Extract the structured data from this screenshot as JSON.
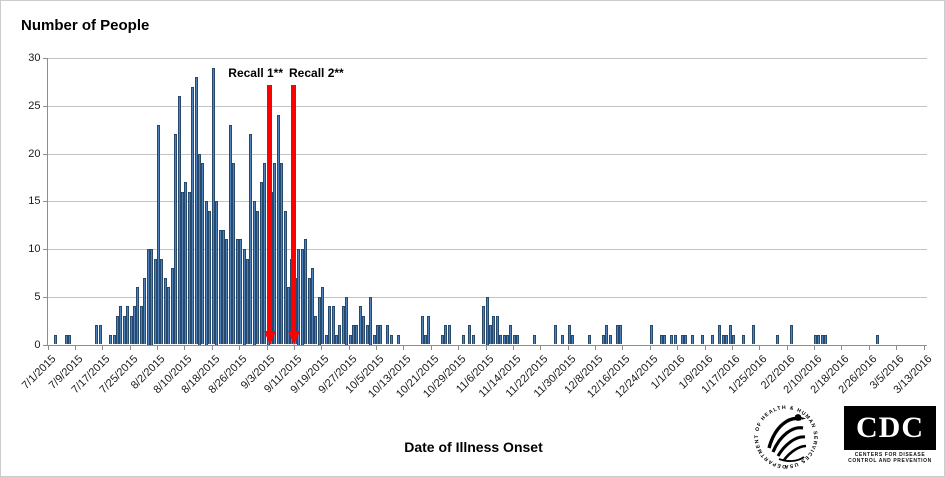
{
  "title": "Number of People",
  "x_axis_title": "Date of Illness Onset",
  "annotations": {
    "recall1_label": "Recall 1**",
    "recall2_label": "Recall 2**"
  },
  "footer": {
    "hhs_seal_text": "DEPARTMENT OF HEALTH & HUMAN SERVICES USA",
    "cdc_logo_text": "CDC",
    "cdc_logo_sub1": "CENTERS FOR DISEASE",
    "cdc_logo_sub2": "CONTROL AND PREVENTION"
  },
  "colors": {
    "bar_fill": "#4f81bd",
    "bar_border": "#27496b",
    "arrow_red": "#fe0000",
    "gridline": "#c3c3c3",
    "axis": "#8e8e8e"
  },
  "chart_data": {
    "type": "bar",
    "title": "Number of People",
    "xlabel": "Date of Illness Onset",
    "ylabel": "Number of People",
    "ylim": [
      0,
      30
    ],
    "y_ticks": [
      0,
      5,
      10,
      15,
      20,
      25,
      30
    ],
    "grid": "horizontal",
    "start_date": "7/1/2015",
    "tick_interval_days": 8,
    "x_tick_labels": [
      "7/1/2015",
      "7/9/2015",
      "7/17/2015",
      "7/25/2015",
      "8/2/2015",
      "8/10/2015",
      "8/18/2015",
      "8/26/2015",
      "9/3/2015",
      "9/11/2015",
      "9/19/2015",
      "9/27/2015",
      "10/5/2015",
      "10/13/2015",
      "10/21/2015",
      "10/29/2015",
      "11/6/2015",
      "11/14/2015",
      "11/22/2015",
      "11/30/2015",
      "12/8/2015",
      "12/16/2015",
      "12/24/2015",
      "1/1/2016",
      "1/9/2016",
      "1/17/2016",
      "1/25/2016",
      "2/2/2016",
      "2/10/2016",
      "2/18/2016",
      "2/26/2016",
      "3/5/2016",
      "3/13/2016"
    ],
    "values": [
      0,
      0,
      1,
      0,
      0,
      1,
      1,
      0,
      0,
      0,
      0,
      0,
      0,
      0,
      2,
      2,
      0,
      0,
      1,
      1,
      3,
      4,
      3,
      4,
      3,
      4,
      6,
      4,
      7,
      10,
      10,
      9,
      23,
      9,
      7,
      6,
      8,
      22,
      26,
      16,
      17,
      16,
      27,
      28,
      20,
      19,
      15,
      14,
      29,
      15,
      12,
      12,
      11,
      23,
      19,
      11,
      11,
      10,
      9,
      22,
      15,
      14,
      17,
      19,
      15,
      16,
      19,
      24,
      19,
      14,
      6,
      9,
      7,
      10,
      10,
      11,
      7,
      8,
      3,
      5,
      6,
      1,
      4,
      4,
      1,
      2,
      4,
      5,
      1,
      2,
      2,
      4,
      3,
      2,
      5,
      1,
      2,
      2,
      0,
      2,
      1,
      0,
      1,
      0,
      0,
      0,
      0,
      0,
      0,
      3,
      1,
      3,
      0,
      0,
      0,
      1,
      2,
      2,
      0,
      0,
      0,
      1,
      0,
      2,
      1,
      0,
      0,
      4,
      5,
      2,
      3,
      3,
      1,
      1,
      1,
      2,
      1,
      1,
      0,
      0,
      0,
      0,
      1,
      0,
      0,
      0,
      0,
      0,
      2,
      0,
      1,
      0,
      2,
      1,
      0,
      0,
      0,
      0,
      1,
      0,
      0,
      0,
      1,
      2,
      1,
      0,
      2,
      2,
      0,
      0,
      0,
      0,
      0,
      0,
      0,
      0,
      2,
      0,
      0,
      1,
      1,
      0,
      1,
      1,
      0,
      1,
      1,
      0,
      1,
      0,
      0,
      1,
      0,
      0,
      1,
      0,
      2,
      1,
      1,
      2,
      1,
      0,
      0,
      1,
      0,
      0,
      2,
      0,
      0,
      0,
      0,
      0,
      0,
      1,
      0,
      0,
      0,
      2,
      0,
      0,
      0,
      0,
      0,
      0,
      1,
      1,
      1,
      1,
      0,
      0,
      0,
      0,
      0,
      0,
      0,
      0,
      0,
      0,
      0,
      0,
      0,
      0,
      1,
      0,
      0,
      0,
      0,
      0,
      0,
      0,
      0,
      0,
      0,
      0,
      0,
      0,
      0
    ],
    "recall_arrows": [
      {
        "label": "Recall 1**",
        "day_index": 64.5,
        "approx_date": "9/4/2015"
      },
      {
        "label": "Recall 2**",
        "day_index": 71.5,
        "approx_date": "9/11/2015"
      }
    ],
    "legend": "none"
  }
}
